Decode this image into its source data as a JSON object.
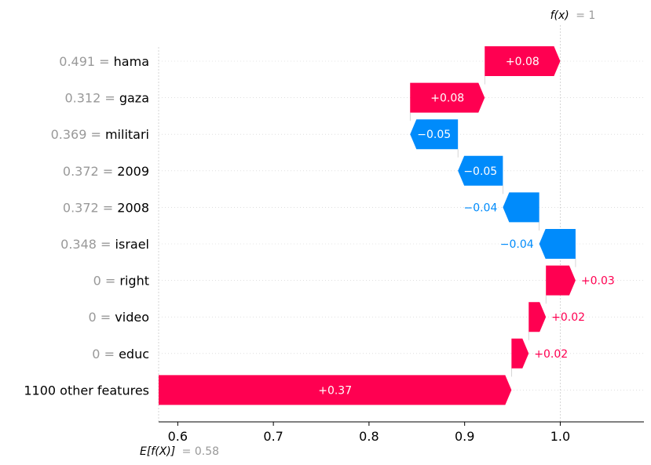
{
  "chart_data": {
    "type": "waterfall",
    "title": "",
    "fx_label": "f(x)",
    "fx_value_text": "= 1",
    "fx_value": 1.0,
    "base_label": "E[f(X)]",
    "base_value_text": "= 0.58",
    "base_value": 0.58,
    "xlim": [
      0.58,
      1.0875
    ],
    "xticks": [
      0.6,
      0.7,
      0.8,
      0.9,
      1.0
    ],
    "xtick_labels": [
      "0.6",
      "0.7",
      "0.8",
      "0.9",
      "1.0"
    ],
    "positive_color": "#ff0051",
    "negative_color": "#008bfb",
    "rows": [
      {
        "value": "0.491",
        "feature": "hama",
        "contribution": 0.08,
        "label": "+0.08",
        "start": 0.921,
        "end": 1.0
      },
      {
        "value": "0.312",
        "feature": "gaza",
        "contribution": 0.08,
        "label": "+0.08",
        "start": 0.843,
        "end": 0.921
      },
      {
        "value": "0.369",
        "feature": "militari",
        "contribution": -0.05,
        "label": "−0.05",
        "start": 0.893,
        "end": 0.843
      },
      {
        "value": "0.372",
        "feature": "2009",
        "contribution": -0.05,
        "label": "−0.05",
        "start": 0.94,
        "end": 0.893
      },
      {
        "value": "0.372",
        "feature": "2008",
        "contribution": -0.04,
        "label": "−0.04",
        "start": 0.978,
        "end": 0.94
      },
      {
        "value": "0.348",
        "feature": "israel",
        "contribution": -0.04,
        "label": "−0.04",
        "start": 1.016,
        "end": 0.978
      },
      {
        "value": "0",
        "feature": "right",
        "contribution": 0.03,
        "label": "+0.03",
        "start": 0.985,
        "end": 1.016
      },
      {
        "value": "0",
        "feature": "video",
        "contribution": 0.02,
        "label": "+0.02",
        "start": 0.967,
        "end": 0.985
      },
      {
        "value": "0",
        "feature": "educ",
        "contribution": 0.02,
        "label": "+0.02",
        "start": 0.949,
        "end": 0.967
      },
      {
        "value": "",
        "feature": "1100 other features",
        "contribution": 0.37,
        "label": "+0.37",
        "start": 0.58,
        "end": 0.949
      }
    ]
  }
}
